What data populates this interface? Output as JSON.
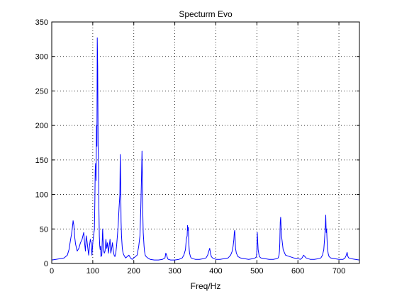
{
  "chart_data": {
    "type": "line",
    "title": "Specturm Evo",
    "xlabel": "Freq/Hz",
    "ylabel": "",
    "xlim": [
      0,
      750
    ],
    "ylim": [
      0,
      350
    ],
    "x_ticks": [
      0,
      100,
      200,
      300,
      400,
      500,
      600,
      700
    ],
    "y_ticks": [
      0,
      50,
      100,
      150,
      200,
      250,
      300,
      350
    ],
    "grid": true,
    "grid_style": "dotted",
    "legend": "none",
    "series": [
      {
        "color": "#0000ff",
        "x": [
          0,
          10,
          20,
          30,
          38,
          42,
          46,
          48,
          50,
          52,
          54,
          56,
          58,
          62,
          66,
          70,
          74,
          78,
          80,
          82,
          84,
          86,
          88,
          90,
          92,
          94,
          96,
          98,
          100,
          102,
          104,
          105,
          106,
          107,
          108,
          109,
          110,
          111,
          112,
          113,
          114,
          115,
          116,
          117,
          118,
          119,
          120,
          122,
          124,
          126,
          128,
          130,
          132,
          134,
          136,
          138,
          140,
          142,
          144,
          146,
          148,
          150,
          152,
          154,
          156,
          158,
          160,
          162,
          164,
          166,
          167,
          168,
          169,
          170,
          171,
          172,
          173,
          174,
          176,
          178,
          180,
          184,
          188,
          192,
          196,
          200,
          204,
          208,
          212,
          215,
          217,
          219,
          220,
          221,
          222,
          223,
          224,
          225,
          226,
          228,
          230,
          234,
          240,
          250,
          260,
          270,
          276,
          278,
          280,
          282,
          284,
          290,
          300,
          310,
          318,
          322,
          326,
          328,
          330,
          331,
          332,
          333,
          334,
          335,
          336,
          338,
          340,
          344,
          350,
          360,
          370,
          376,
          380,
          383,
          385,
          387,
          389,
          392,
          396,
          400,
          410,
          420,
          430,
          436,
          440,
          442,
          444,
          445,
          446,
          447,
          448,
          450,
          454,
          460,
          470,
          480,
          490,
          496,
          499,
          500,
          501,
          503,
          506,
          510,
          520,
          530,
          540,
          548,
          552,
          554,
          555,
          556,
          557,
          558,
          560,
          564,
          570,
          580,
          590,
          600,
          606,
          610,
          614,
          620,
          630,
          640,
          650,
          656,
          660,
          663,
          665,
          667,
          668,
          669,
          670,
          671,
          672,
          674,
          676,
          680,
          690,
          700,
          710,
          715,
          718,
          720,
          722,
          724,
          730,
          740,
          750
        ],
        "y": [
          5,
          6,
          7,
          8,
          12,
          20,
          35,
          42,
          50,
          62,
          55,
          38,
          28,
          18,
          22,
          30,
          35,
          45,
          30,
          18,
          40,
          32,
          22,
          12,
          25,
          35,
          30,
          12,
          30,
          40,
          50,
          90,
          135,
          145,
          120,
          200,
          170,
          327,
          285,
          170,
          145,
          80,
          40,
          25,
          20,
          25,
          10,
          12,
          50,
          20,
          15,
          18,
          35,
          22,
          30,
          15,
          25,
          35,
          15,
          22,
          30,
          18,
          12,
          10,
          15,
          25,
          40,
          55,
          80,
          100,
          158,
          120,
          60,
          40,
          30,
          22,
          18,
          15,
          12,
          10,
          8,
          10,
          12,
          8,
          6,
          8,
          10,
          12,
          25,
          40,
          80,
          130,
          163,
          120,
          70,
          45,
          35,
          25,
          18,
          12,
          10,
          8,
          6,
          5,
          5,
          6,
          8,
          15,
          12,
          8,
          6,
          5,
          5,
          6,
          8,
          12,
          20,
          35,
          40,
          55,
          48,
          52,
          30,
          20,
          15,
          10,
          8,
          7,
          6,
          6,
          7,
          8,
          12,
          18,
          22,
          15,
          10,
          8,
          7,
          6,
          6,
          7,
          8,
          12,
          18,
          25,
          35,
          45,
          48,
          35,
          22,
          15,
          10,
          8,
          7,
          6,
          7,
          8,
          10,
          18,
          45,
          20,
          10,
          8,
          7,
          6,
          6,
          7,
          8,
          12,
          18,
          30,
          60,
          67,
          40,
          20,
          12,
          10,
          8,
          7,
          6,
          8,
          12,
          8,
          6,
          6,
          7,
          8,
          12,
          20,
          35,
          55,
          70,
          45,
          50,
          35,
          22,
          14,
          10,
          8,
          7,
          6,
          6,
          8,
          12,
          16,
          10,
          8,
          7,
          6,
          5
        ]
      }
    ]
  }
}
